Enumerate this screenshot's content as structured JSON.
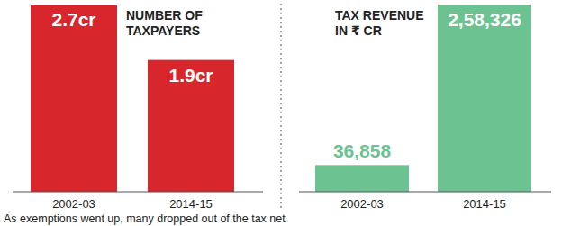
{
  "chart_data": [
    {
      "type": "bar",
      "title": "NUMBER OF\nTAXPAYERS",
      "categories": [
        "2002-03",
        "2014-15"
      ],
      "values": [
        2.7,
        1.9
      ],
      "value_labels": [
        "2.7cr",
        "1.9cr"
      ],
      "color": "#d8262d",
      "ylim": [
        0,
        2.7
      ],
      "data_labels": true,
      "tick_labels": "x"
    },
    {
      "type": "bar",
      "title": "TAX REVENUE\nIN ₹ CR",
      "categories": [
        "2002-03",
        "2014-15"
      ],
      "values": [
        36858,
        258326
      ],
      "value_labels": [
        "36,858",
        "2,58,326"
      ],
      "color": "#6cc391",
      "ylim": [
        0,
        258326
      ],
      "data_labels": true,
      "tick_labels": "x"
    }
  ],
  "caption": "As exemptions went up, many dropped out of the tax net"
}
